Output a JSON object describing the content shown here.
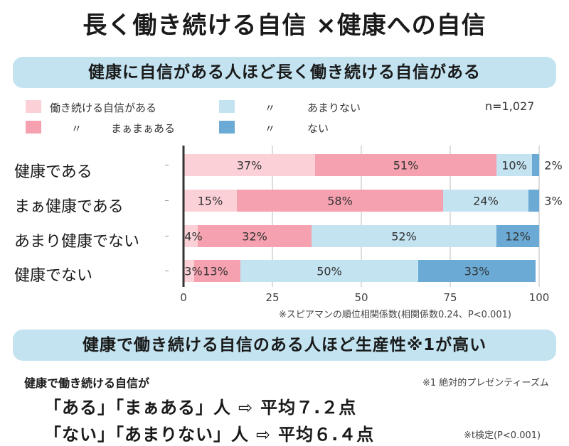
{
  "title": "長く働き続ける自信 ×健康への自信",
  "banner_top": "健康に自信がある人ほど長く働き続ける自信がある",
  "n_label": "n=1,027",
  "colors": {
    "confident": "#fbd1d7",
    "somewhat": "#f6a1af",
    "not_much": "#c3e3f1",
    "none": "#6aaad5"
  },
  "chart_data": {
    "type": "bar",
    "orientation": "horizontal",
    "stacked": true,
    "categories": [
      "健康である",
      "まぁ健康である",
      "あまり健康でない",
      "健康でない"
    ],
    "series": [
      {
        "name": "働き続ける自信がある",
        "values": [
          37,
          15,
          4,
          3
        ]
      },
      {
        "name": "まぁまぁある",
        "values": [
          51,
          58,
          32,
          13
        ]
      },
      {
        "name": "あまりない",
        "values": [
          10,
          24,
          52,
          50
        ]
      },
      {
        "name": "ない",
        "values": [
          2,
          3,
          12,
          33
        ]
      }
    ],
    "value_labels": [
      [
        "37%",
        "51%",
        "10%",
        "2%"
      ],
      [
        "15%",
        "58%",
        "24%",
        "3%"
      ],
      [
        "4%",
        "32%",
        "52%",
        "12%"
      ],
      [
        "3%",
        "13%",
        "50%",
        "33%"
      ]
    ],
    "xlim": [
      0,
      100
    ],
    "xticks": [
      "0",
      "25",
      "50",
      "75",
      "100"
    ],
    "grid": true,
    "legend_position": "top-left"
  },
  "legend": {
    "item1": "働き続ける自信がある",
    "item2_mark": "〃",
    "item2": "まぁまぁある",
    "item3_mark": "〃",
    "item3": "あまりない",
    "item4_mark": "〃",
    "item4": "ない"
  },
  "footnote_spearman": "※スピアマンの順位相関係数(相関係数0.24、P<0.001)",
  "banner_bottom": "健康で働き続ける自信のある人ほど生産性※1が高い",
  "footnote_presenteeism": "※1 絶対的プレゼンティーズム",
  "sub_heading": "健康で働き続ける自信が",
  "results": [
    {
      "group": "「ある」「まぁある」人",
      "arrow": "⇨",
      "value": "平均７.２点"
    },
    {
      "group": "「ない」「あまりない」人",
      "arrow": "⇨",
      "value": "平均６.４点"
    }
  ],
  "footnote_ttest": "※t検定(P<0.001)"
}
